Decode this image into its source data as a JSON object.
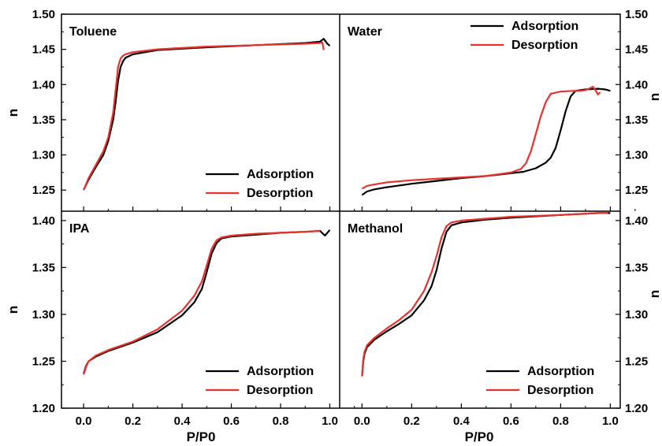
{
  "chart_data": [
    {
      "type": "line",
      "panel": "top-left",
      "title": "Toluene",
      "xlabel": "P/P0",
      "ylabel": "n",
      "xlim": [
        -0.09,
        1.04
      ],
      "ylim": [
        1.22,
        1.5
      ],
      "yticks": [
        1.25,
        1.3,
        1.35,
        1.4,
        1.45,
        1.5
      ],
      "ytick_labels": [
        "1.25",
        "1.30",
        "1.35",
        "1.40",
        "1.45",
        "1.50"
      ],
      "legend": "bottom-right",
      "series": [
        {
          "name": "Adsorption",
          "color": "#000000",
          "x": [
            0.0,
            0.02,
            0.05,
            0.08,
            0.1,
            0.12,
            0.13,
            0.14,
            0.15,
            0.16,
            0.17,
            0.2,
            0.3,
            0.5,
            0.7,
            0.9,
            0.96,
            0.975,
            0.99,
            1.0
          ],
          "y": [
            1.25,
            1.265,
            1.283,
            1.3,
            1.32,
            1.35,
            1.375,
            1.405,
            1.425,
            1.433,
            1.438,
            1.443,
            1.449,
            1.453,
            1.456,
            1.459,
            1.461,
            1.465,
            1.458,
            1.455
          ]
        },
        {
          "name": "Desorption",
          "color": "#e8322c",
          "x": [
            0.0,
            0.02,
            0.05,
            0.08,
            0.1,
            0.12,
            0.13,
            0.14,
            0.15,
            0.16,
            0.17,
            0.2,
            0.3,
            0.5,
            0.7,
            0.9,
            0.96,
            0.97,
            0.975
          ],
          "y": [
            1.25,
            1.267,
            1.286,
            1.305,
            1.325,
            1.36,
            1.392,
            1.425,
            1.437,
            1.441,
            1.443,
            1.446,
            1.45,
            1.454,
            1.456,
            1.458,
            1.459,
            1.46,
            1.449
          ]
        }
      ]
    },
    {
      "type": "line",
      "panel": "top-right",
      "title": "Water",
      "xlabel": "P/P0",
      "ylabel": "n",
      "xlim": [
        -0.09,
        1.04
      ],
      "ylim": [
        1.22,
        1.5
      ],
      "yticks": [
        1.25,
        1.3,
        1.35,
        1.4,
        1.45,
        1.5
      ],
      "ytick_labels": [
        "1.25",
        "1.30",
        "1.35",
        "1.40",
        "1.45",
        "1.50"
      ],
      "legend": "top-right",
      "series": [
        {
          "name": "Adsorption",
          "color": "#000000",
          "x": [
            0.0,
            0.02,
            0.05,
            0.1,
            0.2,
            0.3,
            0.4,
            0.5,
            0.6,
            0.65,
            0.7,
            0.74,
            0.76,
            0.78,
            0.8,
            0.82,
            0.84,
            0.86,
            0.9,
            0.95,
            0.98,
            1.0
          ],
          "y": [
            1.243,
            1.248,
            1.251,
            1.254,
            1.259,
            1.263,
            1.267,
            1.27,
            1.274,
            1.276,
            1.281,
            1.289,
            1.296,
            1.31,
            1.335,
            1.362,
            1.383,
            1.391,
            1.393,
            1.394,
            1.393,
            1.391
          ]
        },
        {
          "name": "Desorption",
          "color": "#e8322c",
          "x": [
            0.0,
            0.02,
            0.05,
            0.1,
            0.2,
            0.3,
            0.4,
            0.5,
            0.6,
            0.64,
            0.66,
            0.68,
            0.7,
            0.72,
            0.74,
            0.76,
            0.8,
            0.85,
            0.88,
            0.9,
            0.92,
            0.93,
            0.94,
            0.95,
            0.96
          ],
          "y": [
            1.252,
            1.256,
            1.258,
            1.261,
            1.264,
            1.266,
            1.268,
            1.27,
            1.275,
            1.28,
            1.288,
            1.305,
            1.33,
            1.355,
            1.375,
            1.387,
            1.39,
            1.391,
            1.391,
            1.392,
            1.395,
            1.397,
            1.392,
            1.386,
            1.389
          ]
        }
      ]
    },
    {
      "type": "line",
      "panel": "bottom-left",
      "title": "IPA",
      "xlabel": "P/P0",
      "ylabel": "n",
      "xlim": [
        -0.09,
        1.04
      ],
      "ylim": [
        1.2,
        1.41
      ],
      "yticks": [
        1.2,
        1.25,
        1.3,
        1.35,
        1.4
      ],
      "ytick_labels": [
        "1.20",
        "1.25",
        "1.30",
        "1.35",
        "1.40"
      ],
      "xticks": [
        0.0,
        0.2,
        0.4,
        0.6,
        0.8,
        1.0
      ],
      "xtick_labels": [
        "0.0",
        "0.2",
        "0.4",
        "0.6",
        "0.8",
        "1.0"
      ],
      "legend": "bottom-right",
      "series": [
        {
          "name": "Adsorption",
          "color": "#000000",
          "x": [
            0.0,
            0.01,
            0.02,
            0.05,
            0.1,
            0.2,
            0.3,
            0.4,
            0.45,
            0.48,
            0.5,
            0.52,
            0.54,
            0.56,
            0.6,
            0.7,
            0.8,
            0.9,
            0.96,
            0.98,
            1.0
          ],
          "y": [
            1.237,
            1.245,
            1.25,
            1.255,
            1.261,
            1.27,
            1.281,
            1.299,
            1.313,
            1.327,
            1.345,
            1.365,
            1.376,
            1.381,
            1.383,
            1.385,
            1.387,
            1.388,
            1.389,
            1.384,
            1.39
          ]
        },
        {
          "name": "Desorption",
          "color": "#e8322c",
          "x": [
            0.0,
            0.01,
            0.02,
            0.05,
            0.1,
            0.2,
            0.3,
            0.4,
            0.45,
            0.48,
            0.5,
            0.52,
            0.54,
            0.56,
            0.6,
            0.7,
            0.8,
            0.9,
            0.96
          ],
          "y": [
            1.236,
            1.244,
            1.25,
            1.256,
            1.262,
            1.271,
            1.284,
            1.304,
            1.32,
            1.335,
            1.352,
            1.37,
            1.379,
            1.382,
            1.384,
            1.386,
            1.387,
            1.388,
            1.389
          ]
        }
      ]
    },
    {
      "type": "line",
      "panel": "bottom-right",
      "title": "Methanol",
      "xlabel": "P/P0",
      "ylabel": "n",
      "xlim": [
        -0.09,
        1.04
      ],
      "ylim": [
        1.2,
        1.41
      ],
      "yticks": [
        1.2,
        1.25,
        1.3,
        1.35,
        1.4
      ],
      "ytick_labels": [
        "1.20",
        "1.25",
        "1.30",
        "1.35",
        "1.40"
      ],
      "xticks": [
        0.0,
        0.2,
        0.4,
        0.6,
        0.8,
        1.0
      ],
      "xtick_labels": [
        "0.0",
        "0.2",
        "0.4",
        "0.6",
        "0.8",
        "1.0"
      ],
      "legend": "bottom-right",
      "series": [
        {
          "name": "Adsorption",
          "color": "#000000",
          "x": [
            0.0,
            0.005,
            0.01,
            0.02,
            0.05,
            0.1,
            0.15,
            0.2,
            0.25,
            0.28,
            0.3,
            0.32,
            0.34,
            0.36,
            0.4,
            0.5,
            0.6,
            0.8,
            0.95,
            1.0
          ],
          "y": [
            1.234,
            1.25,
            1.258,
            1.265,
            1.273,
            1.282,
            1.29,
            1.299,
            1.315,
            1.33,
            1.347,
            1.37,
            1.388,
            1.395,
            1.398,
            1.401,
            1.403,
            1.406,
            1.408,
            1.408
          ]
        },
        {
          "name": "Desorption",
          "color": "#e8322c",
          "x": [
            0.0,
            0.005,
            0.01,
            0.02,
            0.05,
            0.1,
            0.15,
            0.2,
            0.25,
            0.28,
            0.3,
            0.32,
            0.34,
            0.36,
            0.4,
            0.5,
            0.6,
            0.8,
            0.95,
            0.99
          ],
          "y": [
            1.234,
            1.252,
            1.26,
            1.267,
            1.275,
            1.285,
            1.294,
            1.305,
            1.325,
            1.345,
            1.362,
            1.382,
            1.394,
            1.398,
            1.4,
            1.402,
            1.404,
            1.406,
            1.408,
            1.408
          ]
        }
      ]
    }
  ]
}
